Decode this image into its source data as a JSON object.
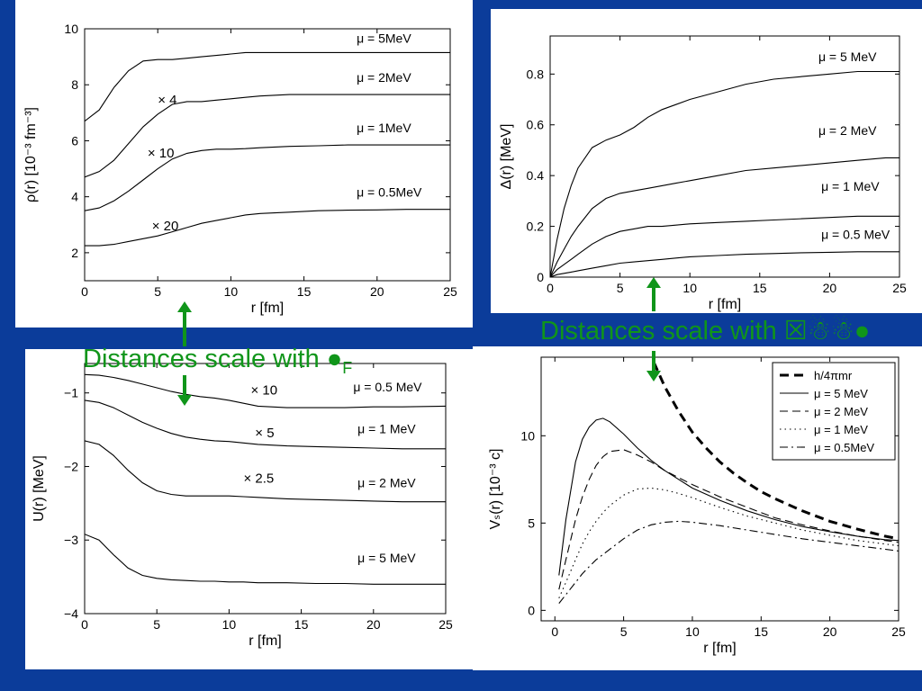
{
  "overlay": {
    "left_text": "Distances scale with ●",
    "left_sub": "F",
    "right_text": "Distances scale with ☒☃☃●",
    "arrow_color": "#10951a"
  },
  "colors": {
    "background": "#0b3c9a",
    "panel": "#ffffff",
    "curve": "#000000",
    "overlay_text": "#10951a"
  },
  "chart_data": [
    {
      "id": "density",
      "type": "line",
      "xlabel": "r [fm]",
      "ylabel": "ρ(r) [10⁻³ fm⁻³]",
      "xlim": [
        0,
        25
      ],
      "ylim": [
        1,
        10
      ],
      "xticks": [
        0,
        5,
        10,
        15,
        20,
        25
      ],
      "yticks": [
        2,
        4,
        6,
        8,
        10
      ],
      "x": [
        0,
        1,
        2,
        3,
        4,
        5,
        6,
        7,
        8,
        9,
        10,
        11,
        12,
        14,
        16,
        18,
        20,
        22,
        25
      ],
      "series": [
        {
          "name": "μ = 5MeV",
          "y": [
            6.7,
            7.1,
            7.9,
            8.5,
            8.85,
            8.9,
            8.9,
            8.95,
            9.0,
            9.05,
            9.1,
            9.15,
            9.15,
            9.15,
            9.15,
            9.15,
            9.15,
            9.15,
            9.15
          ]
        },
        {
          "name": "μ = 2MeV",
          "y": [
            4.7,
            4.9,
            5.3,
            5.9,
            6.5,
            6.95,
            7.3,
            7.4,
            7.4,
            7.45,
            7.5,
            7.55,
            7.6,
            7.65,
            7.65,
            7.65,
            7.65,
            7.65,
            7.65
          ]
        },
        {
          "name": "μ = 1MeV",
          "y": [
            3.5,
            3.6,
            3.85,
            4.2,
            4.6,
            5.0,
            5.35,
            5.55,
            5.65,
            5.7,
            5.7,
            5.72,
            5.75,
            5.8,
            5.82,
            5.85,
            5.85,
            5.85,
            5.85
          ]
        },
        {
          "name": "μ = 0.5MeV",
          "y": [
            2.25,
            2.25,
            2.3,
            2.4,
            2.5,
            2.6,
            2.75,
            2.9,
            3.05,
            3.15,
            3.25,
            3.35,
            3.4,
            3.45,
            3.5,
            3.52,
            3.53,
            3.55,
            3.55
          ]
        }
      ],
      "curve_labels": [
        {
          "text": "μ = 5MeV",
          "x": 18.6,
          "y": 9.5
        },
        {
          "text": "μ = 2MeV",
          "x": 18.6,
          "y": 8.1
        },
        {
          "text": "μ = 1MeV",
          "x": 18.6,
          "y": 6.3
        },
        {
          "text": "μ = 0.5MeV",
          "x": 18.6,
          "y": 4.0
        }
      ],
      "annotations": [
        {
          "text": "× 4",
          "x": 5.0,
          "y": 7.3
        },
        {
          "text": "× 10",
          "x": 4.3,
          "y": 5.4
        },
        {
          "text": "× 20",
          "x": 4.6,
          "y": 2.8
        }
      ]
    },
    {
      "id": "gap",
      "type": "line",
      "xlabel": "r [fm]",
      "ylabel": "Δ(r) [MeV]",
      "xlim": [
        0,
        25
      ],
      "ylim": [
        0,
        0.95
      ],
      "xticks": [
        0,
        5,
        10,
        15,
        20,
        25
      ],
      "yticks": [
        0,
        0.2,
        0.4,
        0.6,
        0.8
      ],
      "x": [
        0,
        0.5,
        1,
        1.5,
        2,
        3,
        4,
        5,
        6,
        7,
        8,
        9,
        10,
        12,
        14,
        16,
        18,
        20,
        22,
        24,
        25
      ],
      "series": [
        {
          "name": "μ = 5 MeV",
          "y": [
            0,
            0.15,
            0.27,
            0.36,
            0.43,
            0.51,
            0.54,
            0.56,
            0.59,
            0.63,
            0.66,
            0.68,
            0.7,
            0.73,
            0.76,
            0.78,
            0.79,
            0.8,
            0.81,
            0.81,
            0.81
          ]
        },
        {
          "name": "μ = 2 MeV",
          "y": [
            0,
            0.06,
            0.11,
            0.16,
            0.2,
            0.27,
            0.31,
            0.33,
            0.34,
            0.35,
            0.36,
            0.37,
            0.38,
            0.4,
            0.42,
            0.43,
            0.44,
            0.45,
            0.46,
            0.47,
            0.47
          ]
        },
        {
          "name": "μ = 1 MeV",
          "y": [
            0,
            0.03,
            0.05,
            0.07,
            0.09,
            0.13,
            0.16,
            0.18,
            0.19,
            0.2,
            0.2,
            0.205,
            0.21,
            0.215,
            0.22,
            0.225,
            0.23,
            0.235,
            0.24,
            0.24,
            0.24
          ]
        },
        {
          "name": "μ = 0.5 MeV",
          "y": [
            0,
            0.01,
            0.015,
            0.02,
            0.025,
            0.035,
            0.045,
            0.055,
            0.06,
            0.065,
            0.07,
            0.075,
            0.08,
            0.085,
            0.09,
            0.093,
            0.096,
            0.098,
            0.1,
            0.1,
            0.1
          ]
        }
      ],
      "curve_labels": [
        {
          "text": "μ = 5 MeV",
          "x": 19.2,
          "y": 0.85
        },
        {
          "text": "μ = 2 MeV",
          "x": 19.2,
          "y": 0.56
        },
        {
          "text": "μ = 1 MeV",
          "x": 19.4,
          "y": 0.34
        },
        {
          "text": "μ = 0.5 MeV",
          "x": 19.4,
          "y": 0.15
        }
      ]
    },
    {
      "id": "potential",
      "type": "line",
      "xlabel": "r [fm]",
      "ylabel": "U(r) [MeV]",
      "xlim": [
        0,
        25
      ],
      "ylim": [
        -4,
        -0.6
      ],
      "xticks": [
        0,
        5,
        10,
        15,
        20,
        25
      ],
      "yticks": [
        -1,
        -2,
        -3,
        -4
      ],
      "x": [
        0,
        1,
        2,
        3,
        4,
        5,
        6,
        7,
        8,
        9,
        10,
        11,
        12,
        14,
        16,
        18,
        20,
        22,
        25
      ],
      "series": [
        {
          "name": "μ = 0.5 MeV",
          "y": [
            -0.75,
            -0.76,
            -0.79,
            -0.83,
            -0.88,
            -0.93,
            -0.98,
            -1.02,
            -1.05,
            -1.07,
            -1.1,
            -1.14,
            -1.18,
            -1.2,
            -1.2,
            -1.2,
            -1.19,
            -1.19,
            -1.18
          ]
        },
        {
          "name": "μ = 1 MeV",
          "y": [
            -1.1,
            -1.13,
            -1.2,
            -1.3,
            -1.4,
            -1.48,
            -1.55,
            -1.6,
            -1.63,
            -1.65,
            -1.66,
            -1.68,
            -1.7,
            -1.72,
            -1.73,
            -1.74,
            -1.75,
            -1.76,
            -1.76
          ]
        },
        {
          "name": "μ = 2 MeV",
          "y": [
            -1.65,
            -1.7,
            -1.85,
            -2.05,
            -2.22,
            -2.33,
            -2.38,
            -2.4,
            -2.4,
            -2.4,
            -2.4,
            -2.41,
            -2.42,
            -2.44,
            -2.45,
            -2.46,
            -2.47,
            -2.48,
            -2.48
          ]
        },
        {
          "name": "μ = 5 MeV",
          "y": [
            -2.92,
            -3.0,
            -3.2,
            -3.38,
            -3.48,
            -3.52,
            -3.54,
            -3.55,
            -3.56,
            -3.56,
            -3.57,
            -3.57,
            -3.58,
            -3.58,
            -3.59,
            -3.59,
            -3.6,
            -3.6,
            -3.6
          ]
        }
      ],
      "curve_labels": [
        {
          "text": "μ = 0.5 MeV",
          "x": 18.6,
          "y": -0.98
        },
        {
          "text": "μ = 1 MeV",
          "x": 18.9,
          "y": -1.55
        },
        {
          "text": "μ = 2 MeV",
          "x": 18.9,
          "y": -2.28
        },
        {
          "text": "μ = 5 MeV",
          "x": 18.9,
          "y": -3.3
        }
      ],
      "annotations": [
        {
          "text": "× 10",
          "x": 11.5,
          "y": -1.02
        },
        {
          "text": "× 5",
          "x": 11.8,
          "y": -1.6
        },
        {
          "text": "× 2.5",
          "x": 11.0,
          "y": -2.22
        }
      ]
    },
    {
      "id": "velocity",
      "type": "line",
      "xlabel": "r [fm]",
      "ylabel": "Vₛ(r) [10⁻³ c]",
      "xlim": [
        -1,
        25
      ],
      "ylim": [
        -0.6,
        14.5
      ],
      "xticks": [
        0,
        5,
        10,
        15,
        20,
        25
      ],
      "yticks": [
        0,
        5,
        10
      ],
      "x": [
        0.3,
        0.8,
        1.5,
        2.0,
        2.5,
        3.0,
        3.5,
        4.0,
        5.0,
        6.0,
        7.0,
        8.0,
        9.0,
        10.0,
        12.0,
        14.0,
        16.0,
        18.0,
        20.0,
        22.0,
        24.0,
        25.0
      ],
      "series": [
        {
          "name": "h/4πmr",
          "style": "thick-dash",
          "x": [
            7.2,
            8.0,
            9.0,
            10.0,
            11.0,
            12.0,
            13.0,
            14.0,
            15.0,
            16.0,
            18.0,
            20.0,
            22.0,
            24.0,
            25.0
          ],
          "y": [
            14.2,
            12.8,
            11.4,
            10.2,
            9.3,
            8.5,
            7.85,
            7.3,
            6.8,
            6.4,
            5.7,
            5.1,
            4.65,
            4.25,
            4.1
          ]
        },
        {
          "name": "μ = 5 MeV",
          "style": "solid",
          "y": [
            2.0,
            5.2,
            8.5,
            9.8,
            10.5,
            10.9,
            11.0,
            10.8,
            10.1,
            9.3,
            8.6,
            8.0,
            7.5,
            7.0,
            6.3,
            5.7,
            5.2,
            4.8,
            4.5,
            4.25,
            4.05,
            4.0
          ]
        },
        {
          "name": "μ = 2 MeV",
          "style": "dash",
          "y": [
            1.2,
            2.9,
            5.2,
            6.5,
            7.5,
            8.3,
            8.8,
            9.1,
            9.2,
            8.9,
            8.5,
            8.0,
            7.6,
            7.2,
            6.5,
            5.9,
            5.3,
            4.9,
            4.55,
            4.25,
            4.0,
            3.9
          ]
        },
        {
          "name": "μ = 1 MeV",
          "style": "dot",
          "y": [
            0.7,
            1.6,
            2.9,
            3.8,
            4.5,
            5.1,
            5.6,
            6.0,
            6.6,
            6.95,
            7.0,
            6.9,
            6.7,
            6.45,
            5.9,
            5.4,
            5.0,
            4.6,
            4.3,
            4.0,
            3.8,
            3.7
          ]
        },
        {
          "name": "μ = 0.5MeV",
          "style": "dashdot",
          "y": [
            0.4,
            0.9,
            1.6,
            2.1,
            2.5,
            2.9,
            3.2,
            3.5,
            4.1,
            4.6,
            4.9,
            5.05,
            5.1,
            5.05,
            4.85,
            4.6,
            4.35,
            4.1,
            3.9,
            3.7,
            3.5,
            3.4
          ]
        }
      ],
      "legend": {
        "position": "top-right"
      }
    }
  ]
}
